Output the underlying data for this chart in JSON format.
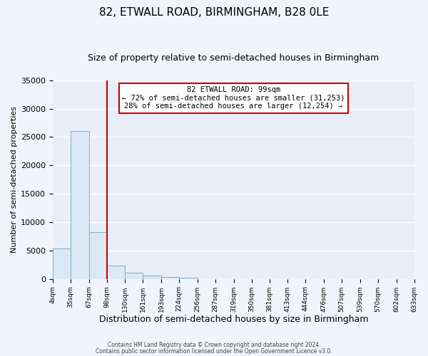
{
  "title": "82, ETWALL ROAD, BIRMINGHAM, B28 0LE",
  "subtitle": "Size of property relative to semi-detached houses in Birmingham",
  "xlabel": "Distribution of semi-detached houses by size in Birmingham",
  "ylabel": "Number of semi-detached properties",
  "bin_edges": [
    4,
    35,
    67,
    98,
    130,
    161,
    193,
    224,
    256,
    287,
    319,
    350,
    381,
    413,
    444,
    476,
    507,
    539,
    570,
    602,
    633
  ],
  "bin_counts": [
    5400,
    26100,
    8200,
    2400,
    1100,
    600,
    300,
    200,
    0,
    0,
    0,
    0,
    0,
    0,
    0,
    0,
    0,
    0,
    0,
    0
  ],
  "bar_color": "#dce8f5",
  "bar_edge_color": "#7ab0d0",
  "vline_color": "#cc0000",
  "vline_x": 98,
  "annotation_title": "82 ETWALL ROAD: 99sqm",
  "annotation_line1": "← 72% of semi-detached houses are smaller (31,253)",
  "annotation_line2": "28% of semi-detached houses are larger (12,254) →",
  "annotation_box_color": "#ffffff",
  "annotation_box_edge_color": "#cc0000",
  "ylim": [
    0,
    35000
  ],
  "yticks": [
    0,
    5000,
    10000,
    15000,
    20000,
    25000,
    30000,
    35000
  ],
  "ytick_labels": [
    "0",
    "5000",
    "10000",
    "15000",
    "20000",
    "25000",
    "30000",
    "35000"
  ],
  "tick_labels": [
    "4sqm",
    "35sqm",
    "67sqm",
    "98sqm",
    "130sqm",
    "161sqm",
    "193sqm",
    "224sqm",
    "256sqm",
    "287sqm",
    "319sqm",
    "350sqm",
    "381sqm",
    "413sqm",
    "444sqm",
    "476sqm",
    "507sqm",
    "539sqm",
    "570sqm",
    "602sqm",
    "633sqm"
  ],
  "footer_line1": "Contains HM Land Registry data © Crown copyright and database right 2024.",
  "footer_line2": "Contains public sector information licensed under the Open Government Licence v3.0.",
  "background_color": "#f0f4fc",
  "plot_background_color": "#e8eef8",
  "grid_color": "#ffffff",
  "title_fontsize": 11,
  "subtitle_fontsize": 9,
  "xlabel_fontsize": 9,
  "ylabel_fontsize": 8
}
